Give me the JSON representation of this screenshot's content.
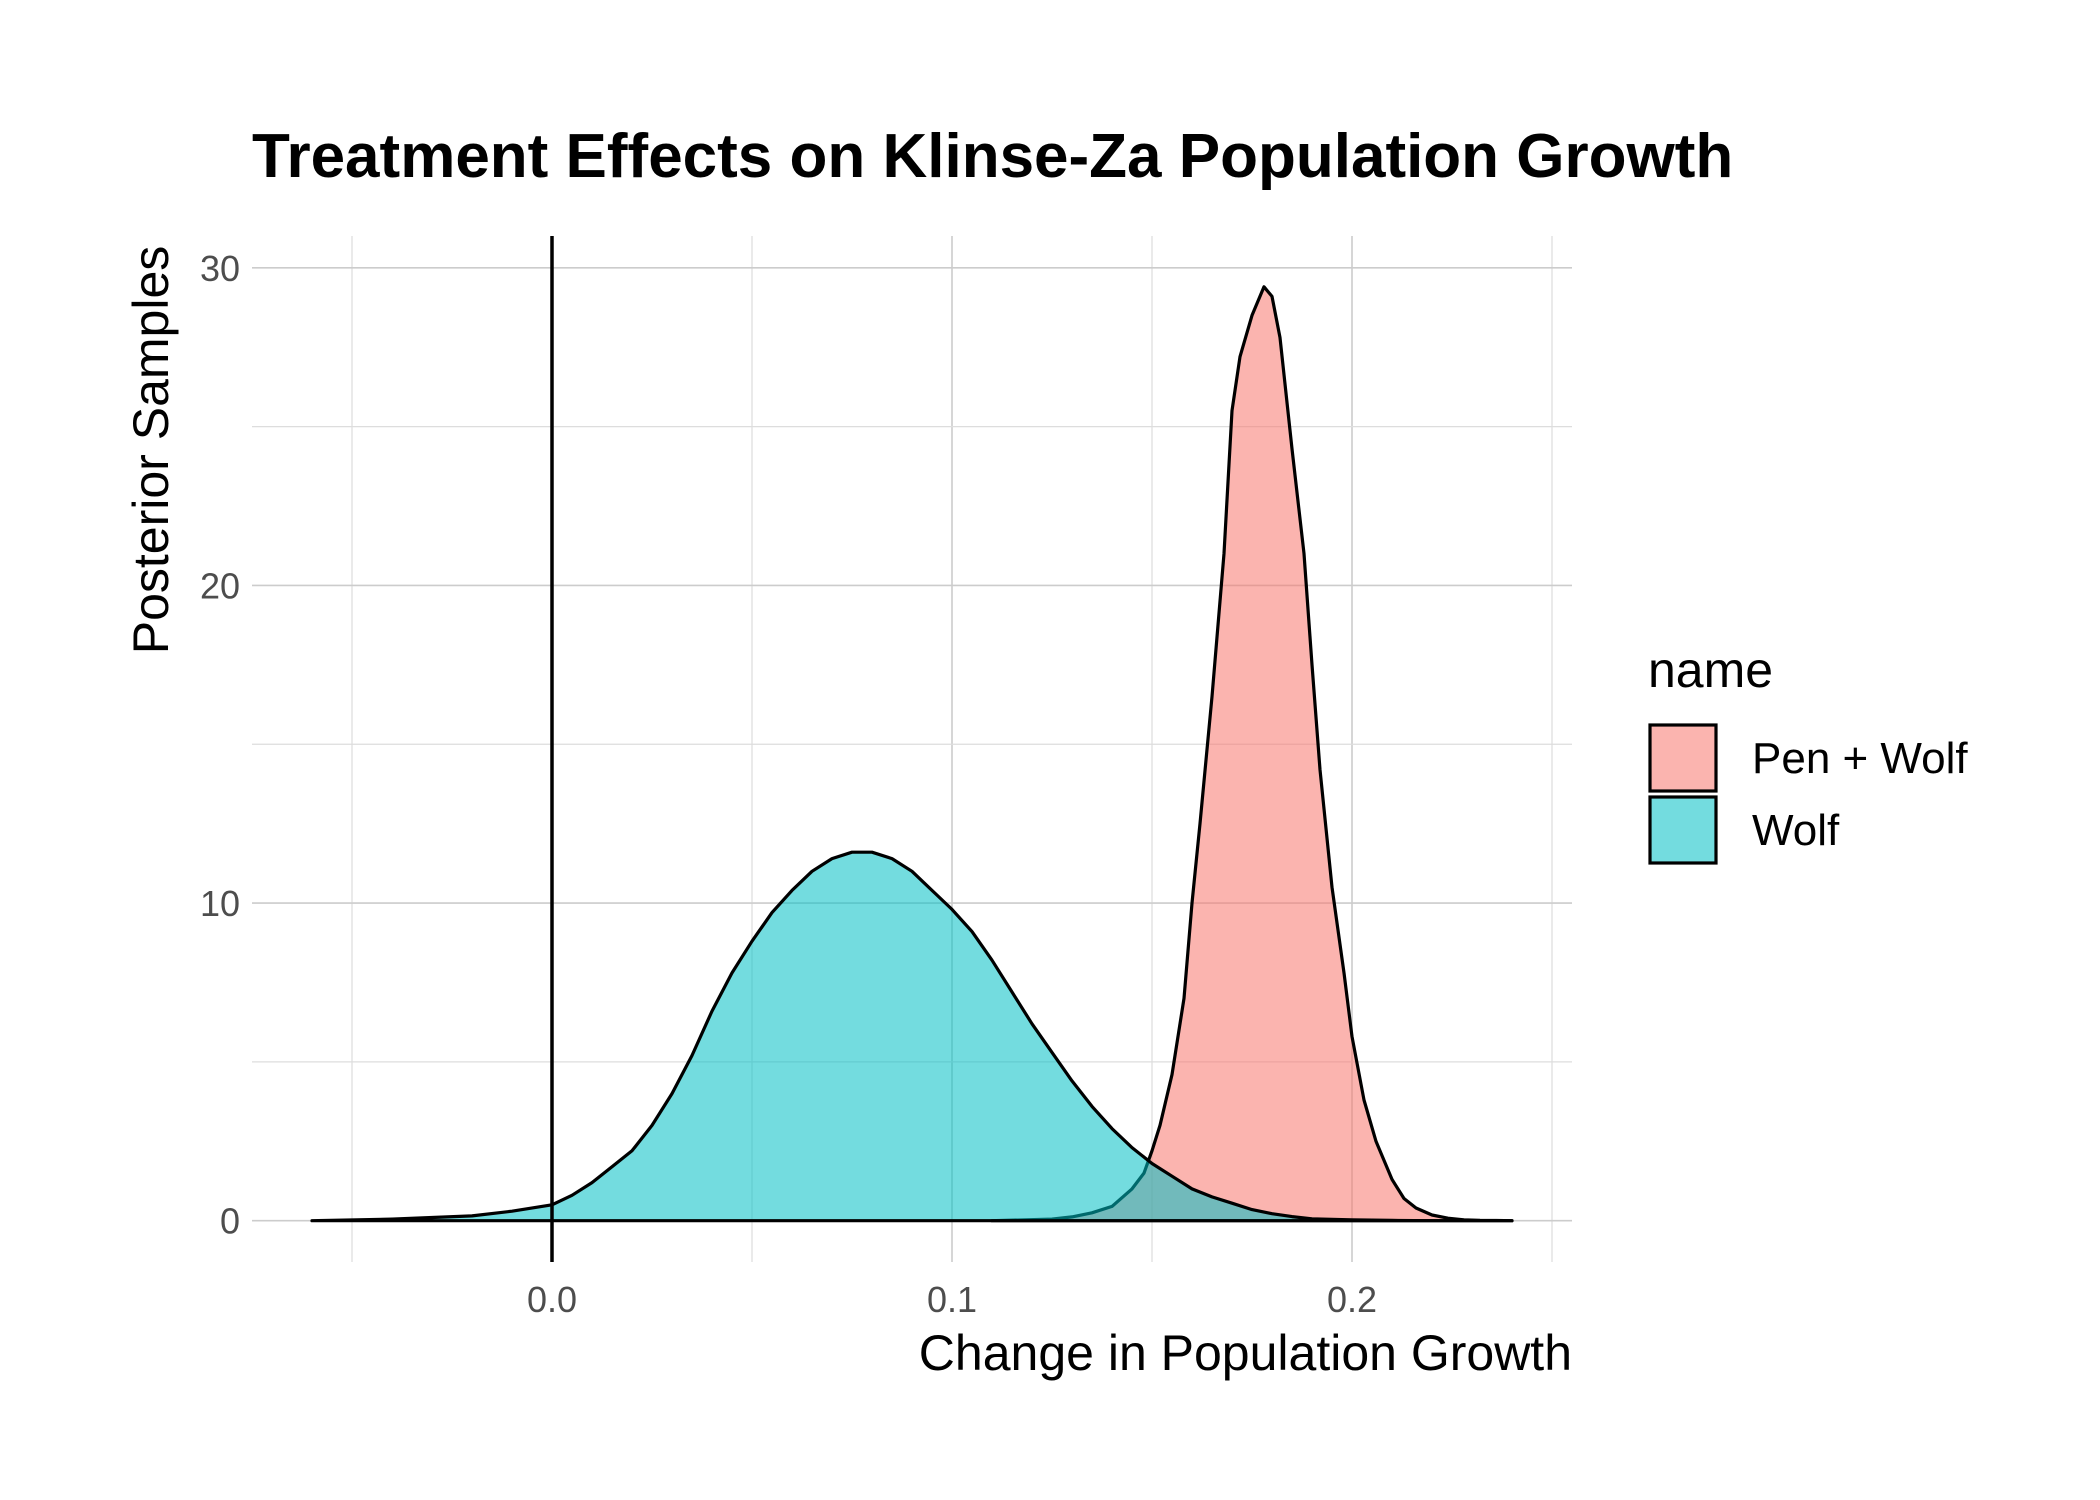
{
  "chart_data": {
    "type": "area",
    "title": "Treatment Effects on Klinse-Za Population Growth",
    "xlabel": "Change in Population Growth",
    "ylabel": "Posterior Samples",
    "xlim": [
      -0.075,
      0.255
    ],
    "ylim": [
      -1.3,
      31
    ],
    "x_ticks": [
      0.0,
      0.1,
      0.2
    ],
    "x_tick_labels": [
      "0.0",
      "0.1",
      "0.2"
    ],
    "y_ticks": [
      0,
      10,
      20,
      30
    ],
    "y_tick_labels": [
      "0",
      "10",
      "20",
      "30"
    ],
    "grid": true,
    "vline": 0,
    "legend": {
      "title": "name",
      "placement": "right"
    },
    "series": [
      {
        "name": "Pen + Wolf",
        "color": "#F8766D",
        "x": [
          0.11,
          0.125,
          0.13,
          0.135,
          0.14,
          0.145,
          0.148,
          0.15,
          0.152,
          0.155,
          0.158,
          0.16,
          0.162,
          0.165,
          0.168,
          0.17,
          0.172,
          0.175,
          0.178,
          0.18,
          0.182,
          0.185,
          0.188,
          0.19,
          0.192,
          0.195,
          0.198,
          0.2,
          0.203,
          0.206,
          0.21,
          0.213,
          0.216,
          0.22,
          0.224,
          0.228,
          0.232,
          0.236,
          0.24
        ],
        "y": [
          0,
          0.05,
          0.12,
          0.25,
          0.45,
          1.0,
          1.5,
          2.2,
          3.0,
          4.6,
          7.0,
          10.0,
          12.5,
          16.5,
          21.0,
          25.5,
          27.2,
          28.5,
          29.4,
          29.1,
          27.8,
          24.3,
          21.0,
          17.5,
          14.2,
          10.5,
          7.8,
          5.8,
          3.8,
          2.5,
          1.3,
          0.7,
          0.4,
          0.18,
          0.08,
          0.03,
          0.01,
          0.005,
          0
        ]
      },
      {
        "name": "Wolf",
        "color": "#00BFC4",
        "x": [
          -0.06,
          -0.04,
          -0.02,
          -0.01,
          0.0,
          0.005,
          0.01,
          0.015,
          0.02,
          0.025,
          0.03,
          0.035,
          0.04,
          0.045,
          0.05,
          0.055,
          0.06,
          0.065,
          0.07,
          0.075,
          0.08,
          0.085,
          0.09,
          0.095,
          0.1,
          0.105,
          0.11,
          0.115,
          0.12,
          0.125,
          0.13,
          0.135,
          0.14,
          0.145,
          0.15,
          0.155,
          0.16,
          0.165,
          0.17,
          0.175,
          0.18,
          0.185,
          0.19,
          0.2,
          0.21,
          0.22,
          0.23,
          0.24
        ],
        "y": [
          0,
          0.05,
          0.15,
          0.3,
          0.5,
          0.8,
          1.2,
          1.7,
          2.2,
          3.0,
          4.0,
          5.2,
          6.6,
          7.8,
          8.8,
          9.7,
          10.4,
          11.0,
          11.4,
          11.6,
          11.6,
          11.4,
          11.0,
          10.4,
          9.8,
          9.1,
          8.2,
          7.2,
          6.2,
          5.3,
          4.4,
          3.6,
          2.9,
          2.3,
          1.8,
          1.4,
          1.0,
          0.75,
          0.55,
          0.35,
          0.22,
          0.13,
          0.06,
          0.03,
          0.01,
          0,
          0,
          0
        ]
      }
    ]
  }
}
